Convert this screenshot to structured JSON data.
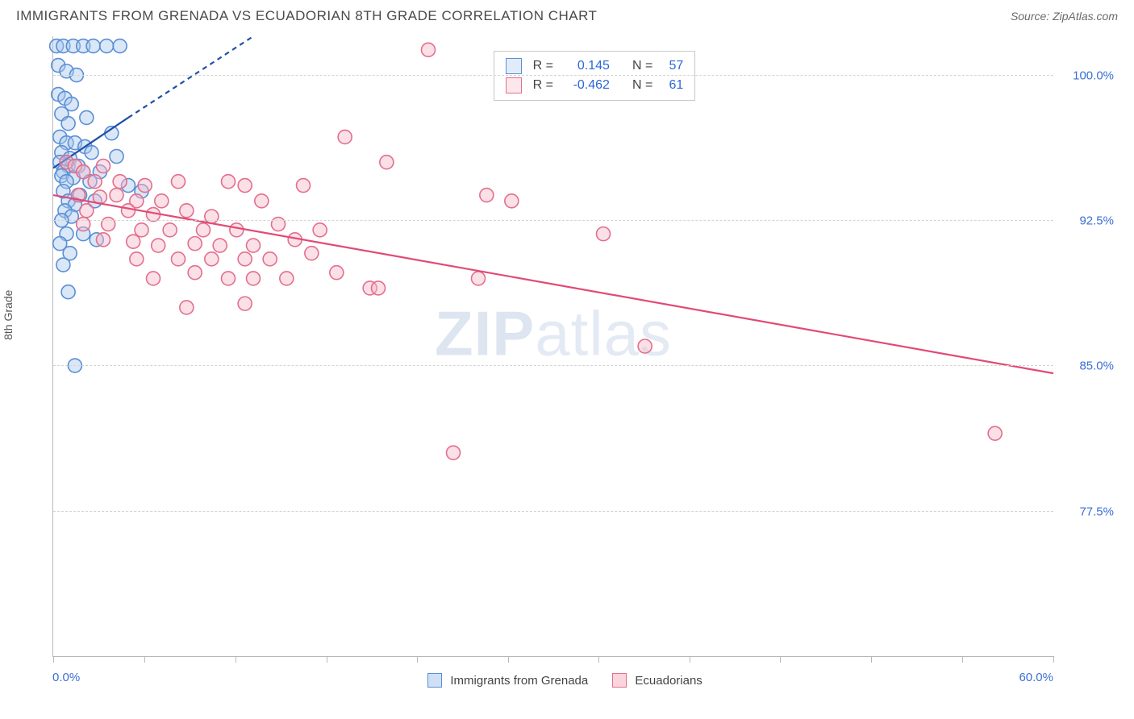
{
  "title": "IMMIGRANTS FROM GRENADA VS ECUADORIAN 8TH GRADE CORRELATION CHART",
  "source": "Source: ZipAtlas.com",
  "watermark_bold": "ZIP",
  "watermark_rest": "atlas",
  "chart": {
    "type": "scatter",
    "ylabel": "8th Grade",
    "xlim": [
      0.0,
      60.0
    ],
    "ylim": [
      70.0,
      102.0
    ],
    "x_tick_positions_pct": [
      0,
      9.1,
      18.2,
      27.3,
      36.4,
      45.5,
      54.5,
      63.6,
      72.7,
      81.8,
      90.9,
      100
    ],
    "x_min_label": "0.0%",
    "x_max_label": "60.0%",
    "y_gridlines": [
      {
        "value": 100.0,
        "label": "100.0%",
        "pos_pct": 6.25
      },
      {
        "value": 92.5,
        "label": "92.5%",
        "pos_pct": 29.7
      },
      {
        "value": 85.0,
        "label": "85.0%",
        "pos_pct": 53.1
      },
      {
        "value": 77.5,
        "label": "77.5%",
        "pos_pct": 76.6
      }
    ],
    "background_color": "#ffffff",
    "grid_color": "#d4d4d4",
    "axis_color": "#b8b8b8",
    "tick_label_color": "#3b6fd4",
    "marker_radius": 8.5,
    "marker_stroke_width": 1.6,
    "marker_fill_opacity": 0.18,
    "trend_line_width": 2.2,
    "trend_dash": "6,5"
  },
  "series": [
    {
      "name": "Immigrants from Grenada",
      "color_stroke": "#5a8fd6",
      "color_fill": "#a9c7ec",
      "trend_color": "#1f4fa8",
      "R": "0.145",
      "N": "57",
      "trend": {
        "x1": 0.0,
        "y1": 95.2,
        "x2_solid": 4.5,
        "y2_solid": 97.8,
        "x2_dash": 12.0,
        "y2_dash": 102.0
      },
      "points": [
        [
          0.2,
          101.5
        ],
        [
          0.6,
          101.5
        ],
        [
          1.2,
          101.5
        ],
        [
          1.8,
          101.5
        ],
        [
          2.4,
          101.5
        ],
        [
          3.2,
          101.5
        ],
        [
          4.0,
          101.5
        ],
        [
          0.3,
          100.5
        ],
        [
          0.8,
          100.2
        ],
        [
          1.4,
          100.0
        ],
        [
          0.3,
          99.0
        ],
        [
          0.7,
          98.8
        ],
        [
          1.1,
          98.5
        ],
        [
          0.5,
          98.0
        ],
        [
          0.9,
          97.5
        ],
        [
          2.0,
          97.8
        ],
        [
          3.5,
          97.0
        ],
        [
          0.4,
          96.8
        ],
        [
          0.8,
          96.5
        ],
        [
          1.3,
          96.5
        ],
        [
          1.9,
          96.3
        ],
        [
          0.5,
          96.0
        ],
        [
          1.0,
          95.7
        ],
        [
          2.3,
          96.0
        ],
        [
          3.8,
          95.8
        ],
        [
          0.4,
          95.5
        ],
        [
          0.9,
          95.3
        ],
        [
          1.5,
          95.3
        ],
        [
          0.6,
          95.0
        ],
        [
          1.8,
          95.0
        ],
        [
          2.8,
          95.0
        ],
        [
          0.5,
          94.8
        ],
        [
          1.2,
          94.7
        ],
        [
          0.8,
          94.5
        ],
        [
          2.2,
          94.5
        ],
        [
          4.5,
          94.3
        ],
        [
          5.3,
          94.0
        ],
        [
          0.6,
          94.0
        ],
        [
          1.6,
          93.8
        ],
        [
          0.9,
          93.5
        ],
        [
          1.3,
          93.3
        ],
        [
          2.5,
          93.5
        ],
        [
          0.7,
          93.0
        ],
        [
          1.1,
          92.7
        ],
        [
          0.5,
          92.5
        ],
        [
          0.8,
          91.8
        ],
        [
          0.4,
          91.3
        ],
        [
          1.0,
          90.8
        ],
        [
          0.6,
          90.2
        ],
        [
          1.8,
          91.8
        ],
        [
          2.6,
          91.5
        ],
        [
          0.9,
          88.8
        ],
        [
          1.3,
          85.0
        ]
      ]
    },
    {
      "name": "Ecuadorians",
      "color_stroke": "#e36f8d",
      "color_fill": "#f6b7c7",
      "trend_color": "#e24a76",
      "R": "-0.462",
      "N": "61",
      "trend": {
        "x1": 0.0,
        "y1": 93.8,
        "x2_solid": 60.0,
        "y2_solid": 84.6,
        "x2_dash": 60.0,
        "y2_dash": 84.6
      },
      "points": [
        [
          0.8,
          95.5
        ],
        [
          1.3,
          95.3
        ],
        [
          1.8,
          95.0
        ],
        [
          3.0,
          95.3
        ],
        [
          2.5,
          94.5
        ],
        [
          4.0,
          94.5
        ],
        [
          5.5,
          94.3
        ],
        [
          7.5,
          94.5
        ],
        [
          10.5,
          94.5
        ],
        [
          1.5,
          93.8
        ],
        [
          2.8,
          93.7
        ],
        [
          3.8,
          93.8
        ],
        [
          5.0,
          93.5
        ],
        [
          6.5,
          93.5
        ],
        [
          11.5,
          94.3
        ],
        [
          15.0,
          94.3
        ],
        [
          2.0,
          93.0
        ],
        [
          4.5,
          93.0
        ],
        [
          6.0,
          92.8
        ],
        [
          8.0,
          93.0
        ],
        [
          9.5,
          92.7
        ],
        [
          12.5,
          93.5
        ],
        [
          17.5,
          96.8
        ],
        [
          20.0,
          95.5
        ],
        [
          1.8,
          92.3
        ],
        [
          3.3,
          92.3
        ],
        [
          5.3,
          92.0
        ],
        [
          7.0,
          92.0
        ],
        [
          9.0,
          92.0
        ],
        [
          11.0,
          92.0
        ],
        [
          13.5,
          92.3
        ],
        [
          22.5,
          101.3
        ],
        [
          26.0,
          93.8
        ],
        [
          27.5,
          93.5
        ],
        [
          3.0,
          91.5
        ],
        [
          4.8,
          91.4
        ],
        [
          6.3,
          91.2
        ],
        [
          8.5,
          91.3
        ],
        [
          10.0,
          91.2
        ],
        [
          12.0,
          91.2
        ],
        [
          14.5,
          91.5
        ],
        [
          16.0,
          92.0
        ],
        [
          5.0,
          90.5
        ],
        [
          7.5,
          90.5
        ],
        [
          9.5,
          90.5
        ],
        [
          11.5,
          90.5
        ],
        [
          13.0,
          90.5
        ],
        [
          15.5,
          90.8
        ],
        [
          33.0,
          91.8
        ],
        [
          6.0,
          89.5
        ],
        [
          8.5,
          89.8
        ],
        [
          10.5,
          89.5
        ],
        [
          12.0,
          89.5
        ],
        [
          14.0,
          89.5
        ],
        [
          17.0,
          89.8
        ],
        [
          19.0,
          89.0
        ],
        [
          19.5,
          89.0
        ],
        [
          25.5,
          89.5
        ],
        [
          8.0,
          88.0
        ],
        [
          11.5,
          88.2
        ],
        [
          35.5,
          86.0
        ],
        [
          24.0,
          80.5
        ],
        [
          56.5,
          81.5
        ]
      ]
    }
  ],
  "bottom_legend": [
    {
      "swatch_stroke": "#5a8fd6",
      "swatch_fill": "#cfe0f5",
      "label": "Immigrants from Grenada"
    },
    {
      "swatch_stroke": "#e36f8d",
      "swatch_fill": "#fad5de",
      "label": "Ecuadorians"
    }
  ]
}
